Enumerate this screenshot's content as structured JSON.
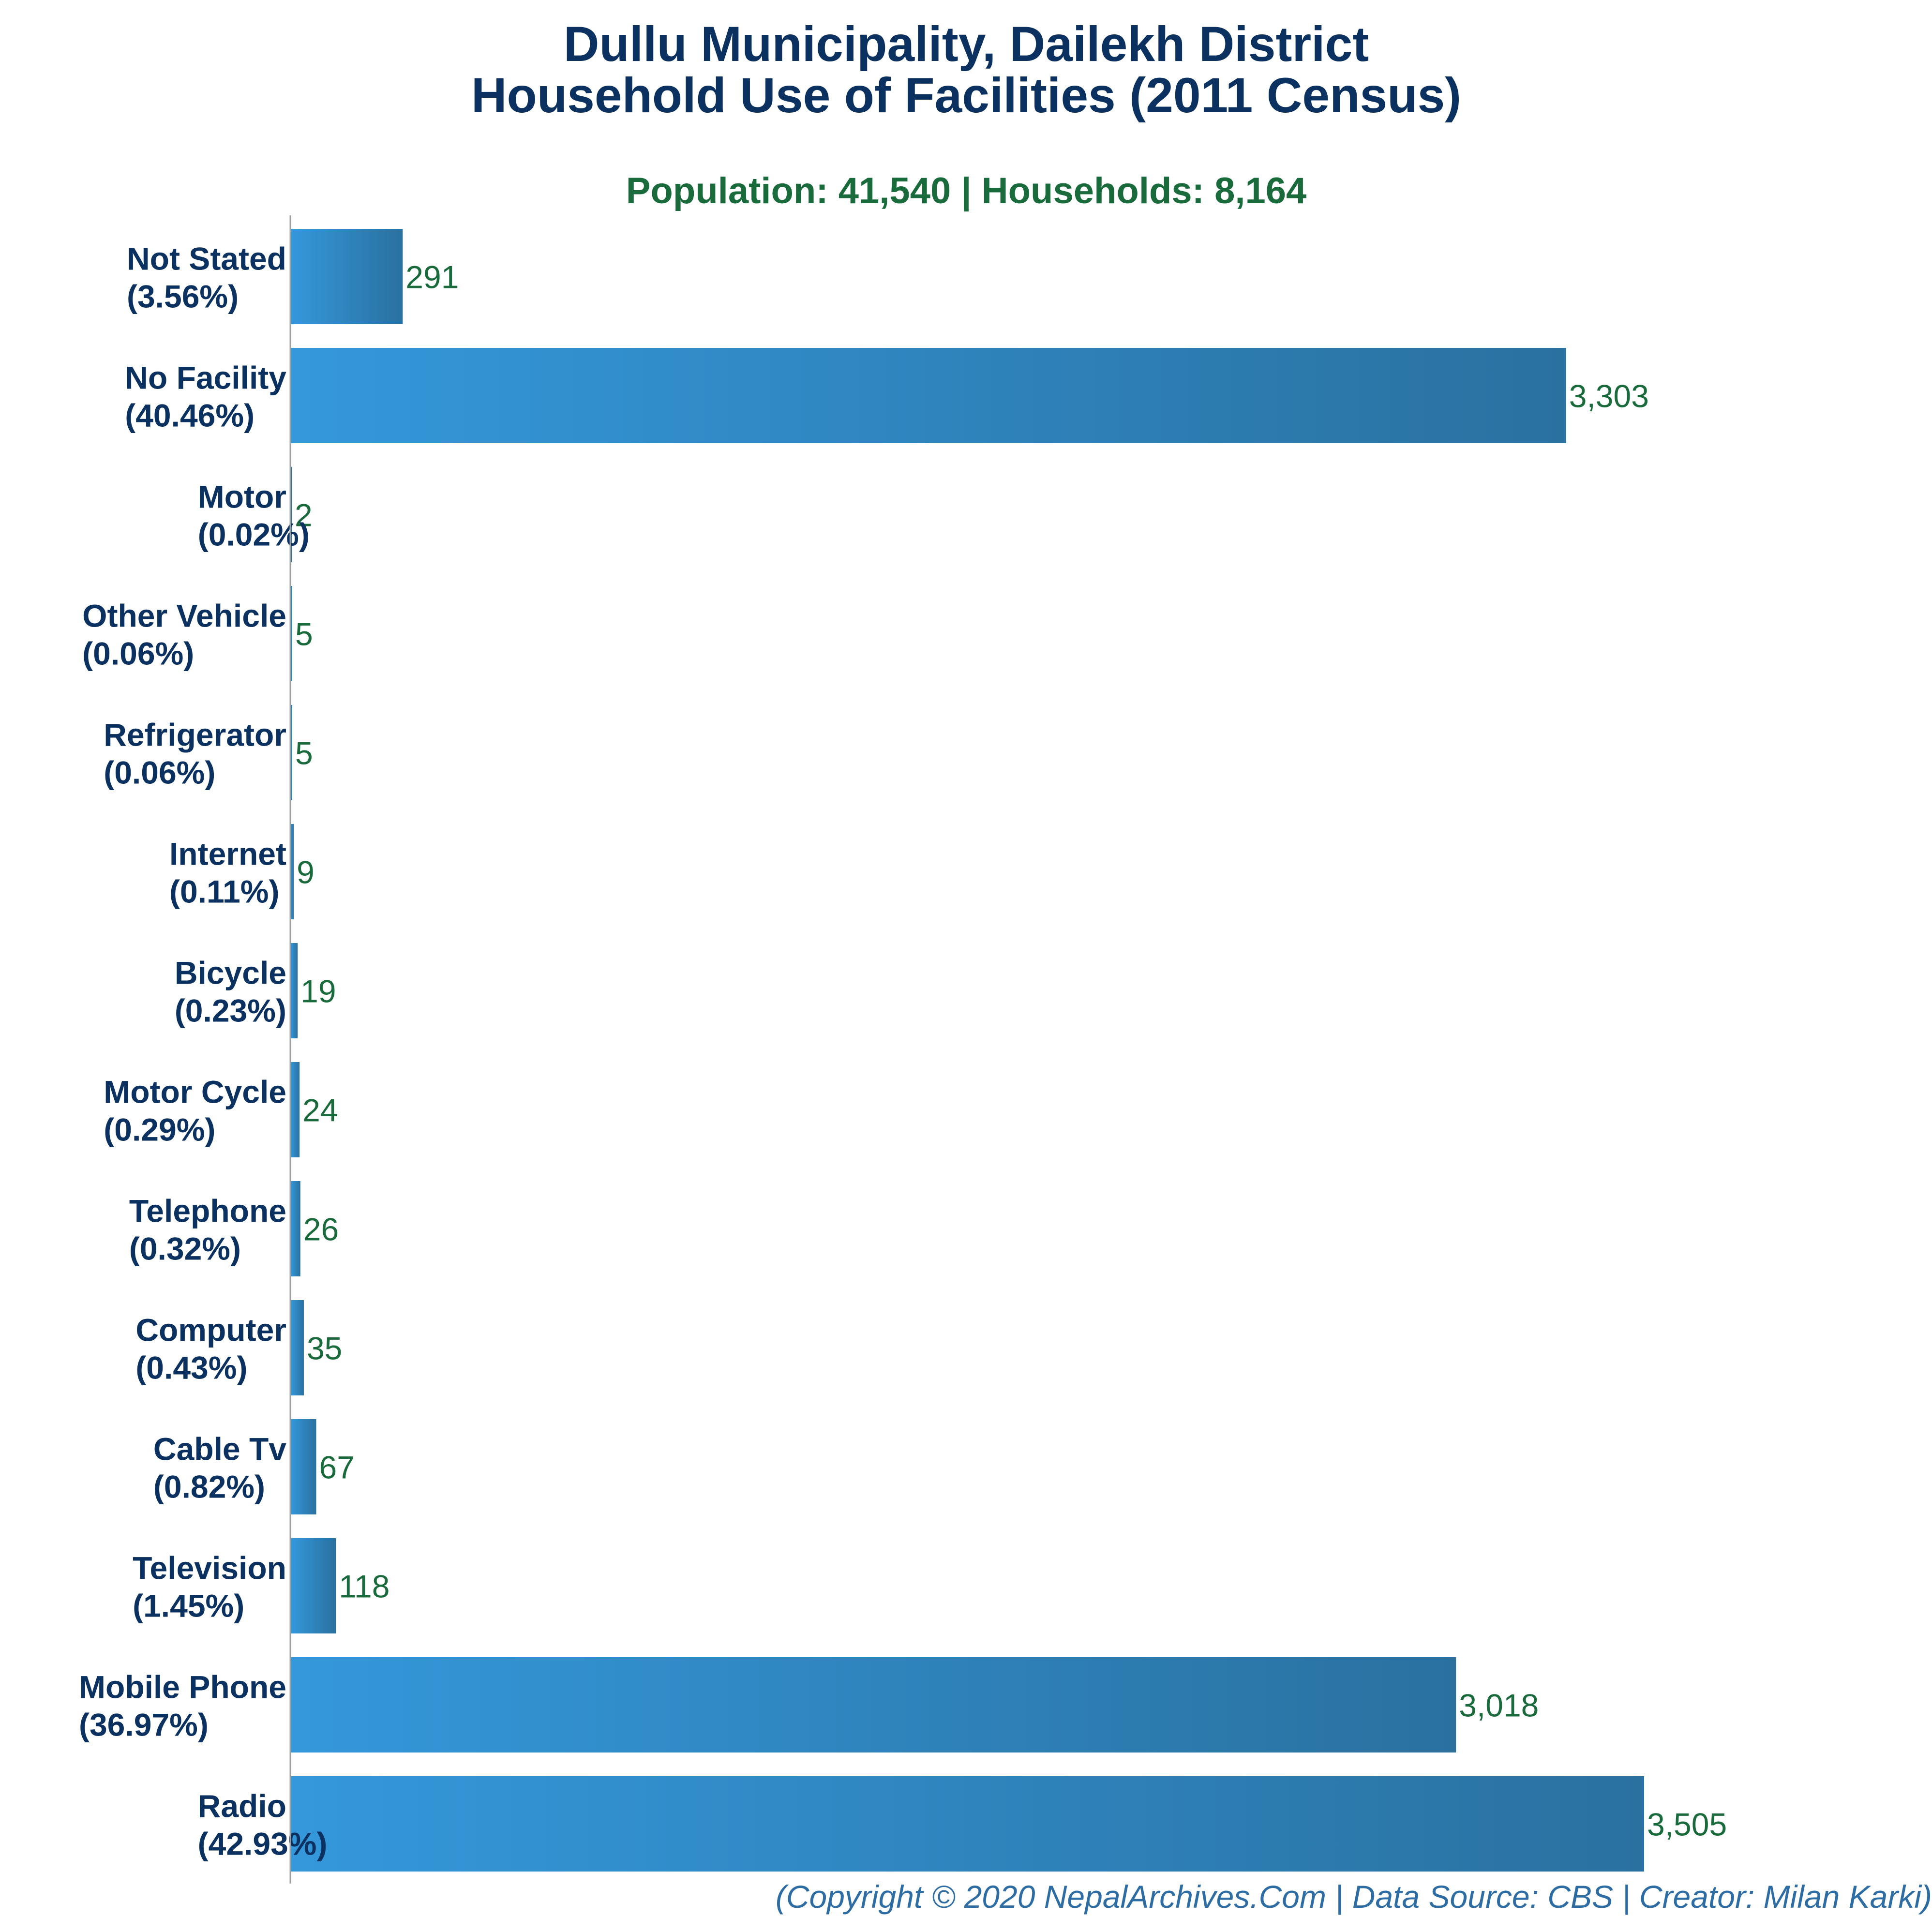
{
  "chart_data": {
    "type": "bar",
    "orientation": "horizontal",
    "title": "Dullu Municipality, Dailekh District",
    "title_line2": "Household Use of Facilities (2011 Census)",
    "subtitle": "Population: 41,540 | Households: 8,164",
    "categories": [
      "Not Stated",
      "No Facility",
      "Motor",
      "Other Vehicle",
      "Refrigerator",
      "Internet",
      "Bicycle",
      "Motor Cycle",
      "Telephone",
      "Computer",
      "Cable Tv",
      "Television",
      "Mobile Phone",
      "Radio"
    ],
    "percent_labels": [
      "(3.56%)",
      "(40.46%)",
      "(0.02%)",
      "(0.06%)",
      "(0.06%)",
      "(0.11%)",
      "(0.23%)",
      "(0.29%)",
      "(0.32%)",
      "(0.43%)",
      "(0.82%)",
      "(1.45%)",
      "(36.97%)",
      "(42.93%)"
    ],
    "values": [
      291,
      3303,
      2,
      5,
      5,
      9,
      19,
      24,
      26,
      35,
      67,
      118,
      3018,
      3505
    ],
    "value_labels": [
      "291",
      "3,303",
      "2",
      "5",
      "5",
      "9",
      "19",
      "24",
      "26",
      "35",
      "67",
      "118",
      "3,018",
      "3,505"
    ],
    "xlim": [
      0,
      3505
    ],
    "xlabel": "",
    "ylabel": "",
    "grid": false,
    "legend": "none"
  },
  "footer": "(Copyright © 2020 NepalArchives.Com | Data Source: CBS | Creator: Milan Karki)",
  "colors": {
    "title": "#0b3160",
    "subtitle": "#1a6b3c",
    "category_label": "#0b3160",
    "value_label": "#1a6b3c",
    "footer": "#2e6da4",
    "bar_gradient_start": "#3498db",
    "bar_gradient_end": "#2a71a0",
    "axis_line": "#a0a0a0"
  }
}
